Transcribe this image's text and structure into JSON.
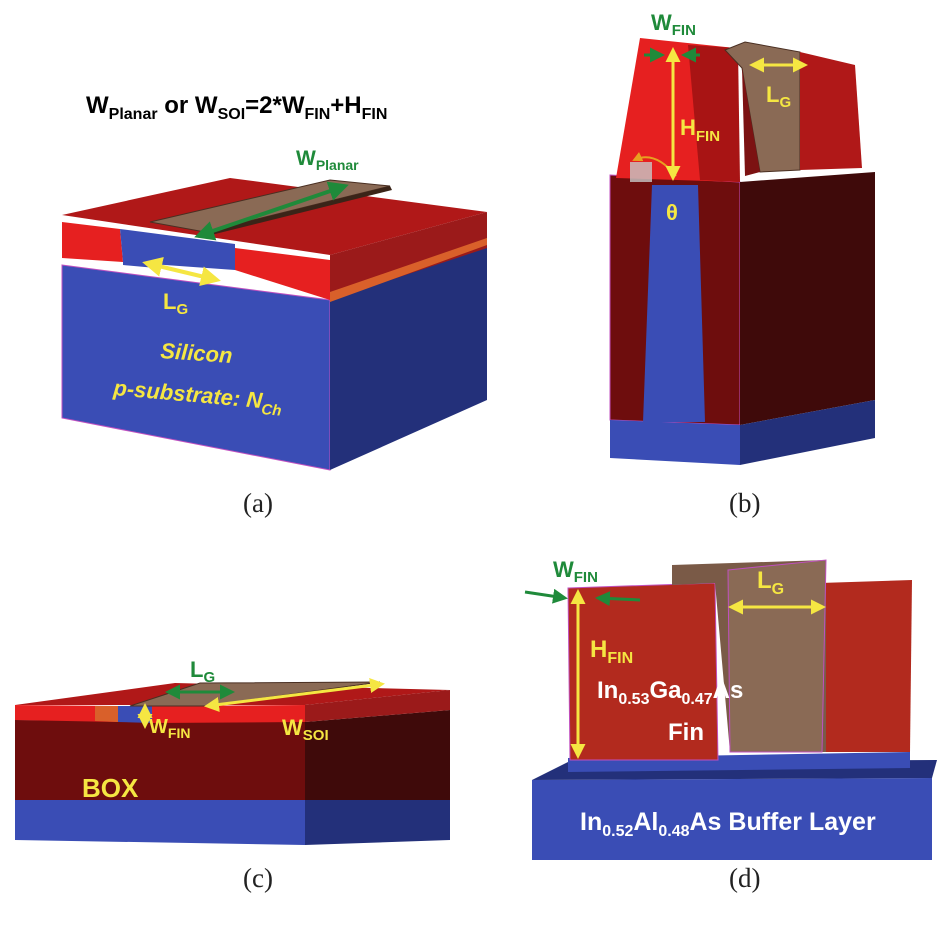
{
  "formula": {
    "w_planar_main": "W",
    "w_planar_sub": "Planar",
    "or_text": " or ",
    "w_soi_main": "W",
    "w_soi_sub": "SOI",
    "eq_text": "=2*",
    "w_fin_main": "W",
    "w_fin_sub": "FIN",
    "plus_text": "+",
    "h_fin_main": "H",
    "h_fin_sub": "FIN"
  },
  "panel_a": {
    "caption": "(a)",
    "w_planar_main": "W",
    "w_planar_sub": "Planar",
    "lg_main": "L",
    "lg_sub": "G",
    "silicon": "Silicon",
    "substrate_main": "p-substrate: N",
    "substrate_sub": "Ch"
  },
  "panel_b": {
    "caption": "(b)",
    "w_fin_main": "W",
    "w_fin_sub": "FIN",
    "h_fin_main": "H",
    "h_fin_sub": "FIN",
    "lg_main": "L",
    "lg_sub": "G",
    "theta": "θ"
  },
  "panel_c": {
    "caption": "(c)",
    "lg_main": "L",
    "lg_sub": "G",
    "w_fin_main": "W",
    "w_fin_sub": "FIN",
    "w_soi_main": "W",
    "w_soi_sub": "SOI",
    "box": "BOX"
  },
  "panel_d": {
    "caption": "(d)",
    "w_fin_main": "W",
    "w_fin_sub": "FIN",
    "lg_main": "L",
    "lg_sub": "G",
    "h_fin_main": "H",
    "h_fin_sub": "FIN",
    "fin_in": "In",
    "fin_in_sub": "0.53",
    "fin_ga": "Ga",
    "fin_ga_sub": "0.47",
    "fin_as": "As",
    "fin_word": "Fin",
    "buf_in": "In",
    "buf_in_sub": "0.52",
    "buf_al": "Al",
    "buf_al_sub": "0.48",
    "buf_rest": "As Buffer Layer"
  },
  "colors": {
    "silicon_blue": "#3a4db5",
    "gate_red": "#e62020",
    "dark_red": "#6e0d0d",
    "metal_brown": "#8a6a55",
    "yellow_label": "#f5e642",
    "green_label": "#1f8a3a"
  }
}
